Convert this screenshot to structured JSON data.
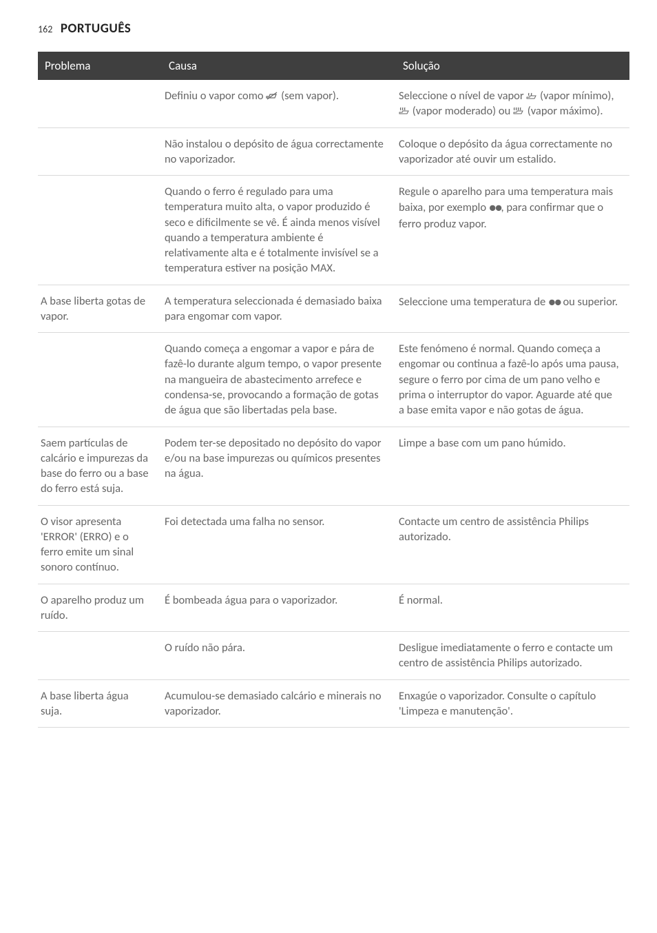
{
  "header": {
    "page_number": "162",
    "title": "PORTUGUÊS"
  },
  "table": {
    "columns": [
      "Problema",
      "Causa",
      "Solução"
    ],
    "rows": [
      {
        "problema": "",
        "causa_pre": "Definiu o vapor como ",
        "causa_icon": "no-steam",
        "causa_post": " (sem vapor).",
        "solucao_parts": [
          {
            "t": "Seleccione o nível de vapor "
          },
          {
            "icon": "steam-small"
          },
          {
            "t": " (vapor mínimo), "
          },
          {
            "icon": "steam-med"
          },
          {
            "t": " (vapor moderado) ou "
          },
          {
            "icon": "steam-large"
          },
          {
            "t": " (vapor máximo)."
          }
        ]
      },
      {
        "problema": "",
        "causa": "Não instalou o depósito de água correctamente no vaporizador.",
        "solucao": "Coloque o depósito da água correctamente no vaporizador até ouvir um estalido."
      },
      {
        "problema": "",
        "causa": "Quando o ferro é regulado para uma temperatura muito alta, o vapor produzido é seco e dificilmente se vê. É ainda menos visível quando a temperatura ambiente é relativamente alta e é totalmente invisível se a temperatura estiver na posição MAX.",
        "solucao_parts": [
          {
            "t": "Regule o aparelho para uma temperatura mais baixa, por exemplo "
          },
          {
            "dots": "●●"
          },
          {
            "t": ", para confirmar que o ferro produz vapor."
          }
        ]
      },
      {
        "problema": "A base liberta gotas de vapor.",
        "causa": "A temperatura seleccionada é demasiado baixa para engomar com vapor.",
        "solucao_parts": [
          {
            "t": "Seleccione uma temperatura de  "
          },
          {
            "dots": "●●"
          },
          {
            "t": " ou superior."
          }
        ]
      },
      {
        "problema": "",
        "causa": "Quando começa a engomar a vapor e pára de fazê-lo durante algum tempo, o vapor presente na mangueira de abastecimento arrefece e condensa-se, provocando a formação de gotas de água que são libertadas pela base.",
        "solucao": "Este fenómeno é normal. Quando começa a engomar ou continua a fazê-lo após uma pausa, segure o ferro por cima de um pano velho e prima o interruptor do vapor. Aguarde até que a base emita vapor e não gotas de água."
      },
      {
        "problema": "Saem partículas de calcário e impurezas da base do ferro ou a base do ferro está suja.",
        "causa": "Podem ter-se depositado no depósito do vapor e/ou na base impurezas ou químicos presentes na água.",
        "solucao": "Limpe a base com um pano húmido."
      },
      {
        "problema": "O visor apresenta 'ERROR' (ERRO) e o ferro emite um sinal sonoro contínuo.",
        "causa": "Foi detectada uma falha no sensor.",
        "solucao": "Contacte um centro de assistência Philips autorizado."
      },
      {
        "problema": "O aparelho produz um ruído.",
        "causa": "É bombeada água para o vaporizador.",
        "solucao": "É normal."
      },
      {
        "problema": "",
        "causa": "O ruído não pára.",
        "solucao": "Desligue imediatamente o ferro e contacte um centro de assistência Philips autorizado."
      },
      {
        "problema": "A base liberta água suja.",
        "causa": "Acumulou-se demasiado calcário e minerais no vaporizador.",
        "solucao": "Enxagúe o vaporizador. Consulte o capítulo 'Limpeza e manutenção'."
      }
    ]
  },
  "colors": {
    "header_bg": "#3f3f3f",
    "header_text": "#ffffff",
    "body_text": "#666666",
    "title_text": "#222222",
    "row_border": "#d9d9d9",
    "background": "#ffffff"
  },
  "icons": {
    "no-steam": "iron-strike",
    "steam-small": "steam-1",
    "steam-med": "steam-2",
    "steam-large": "steam-3"
  }
}
